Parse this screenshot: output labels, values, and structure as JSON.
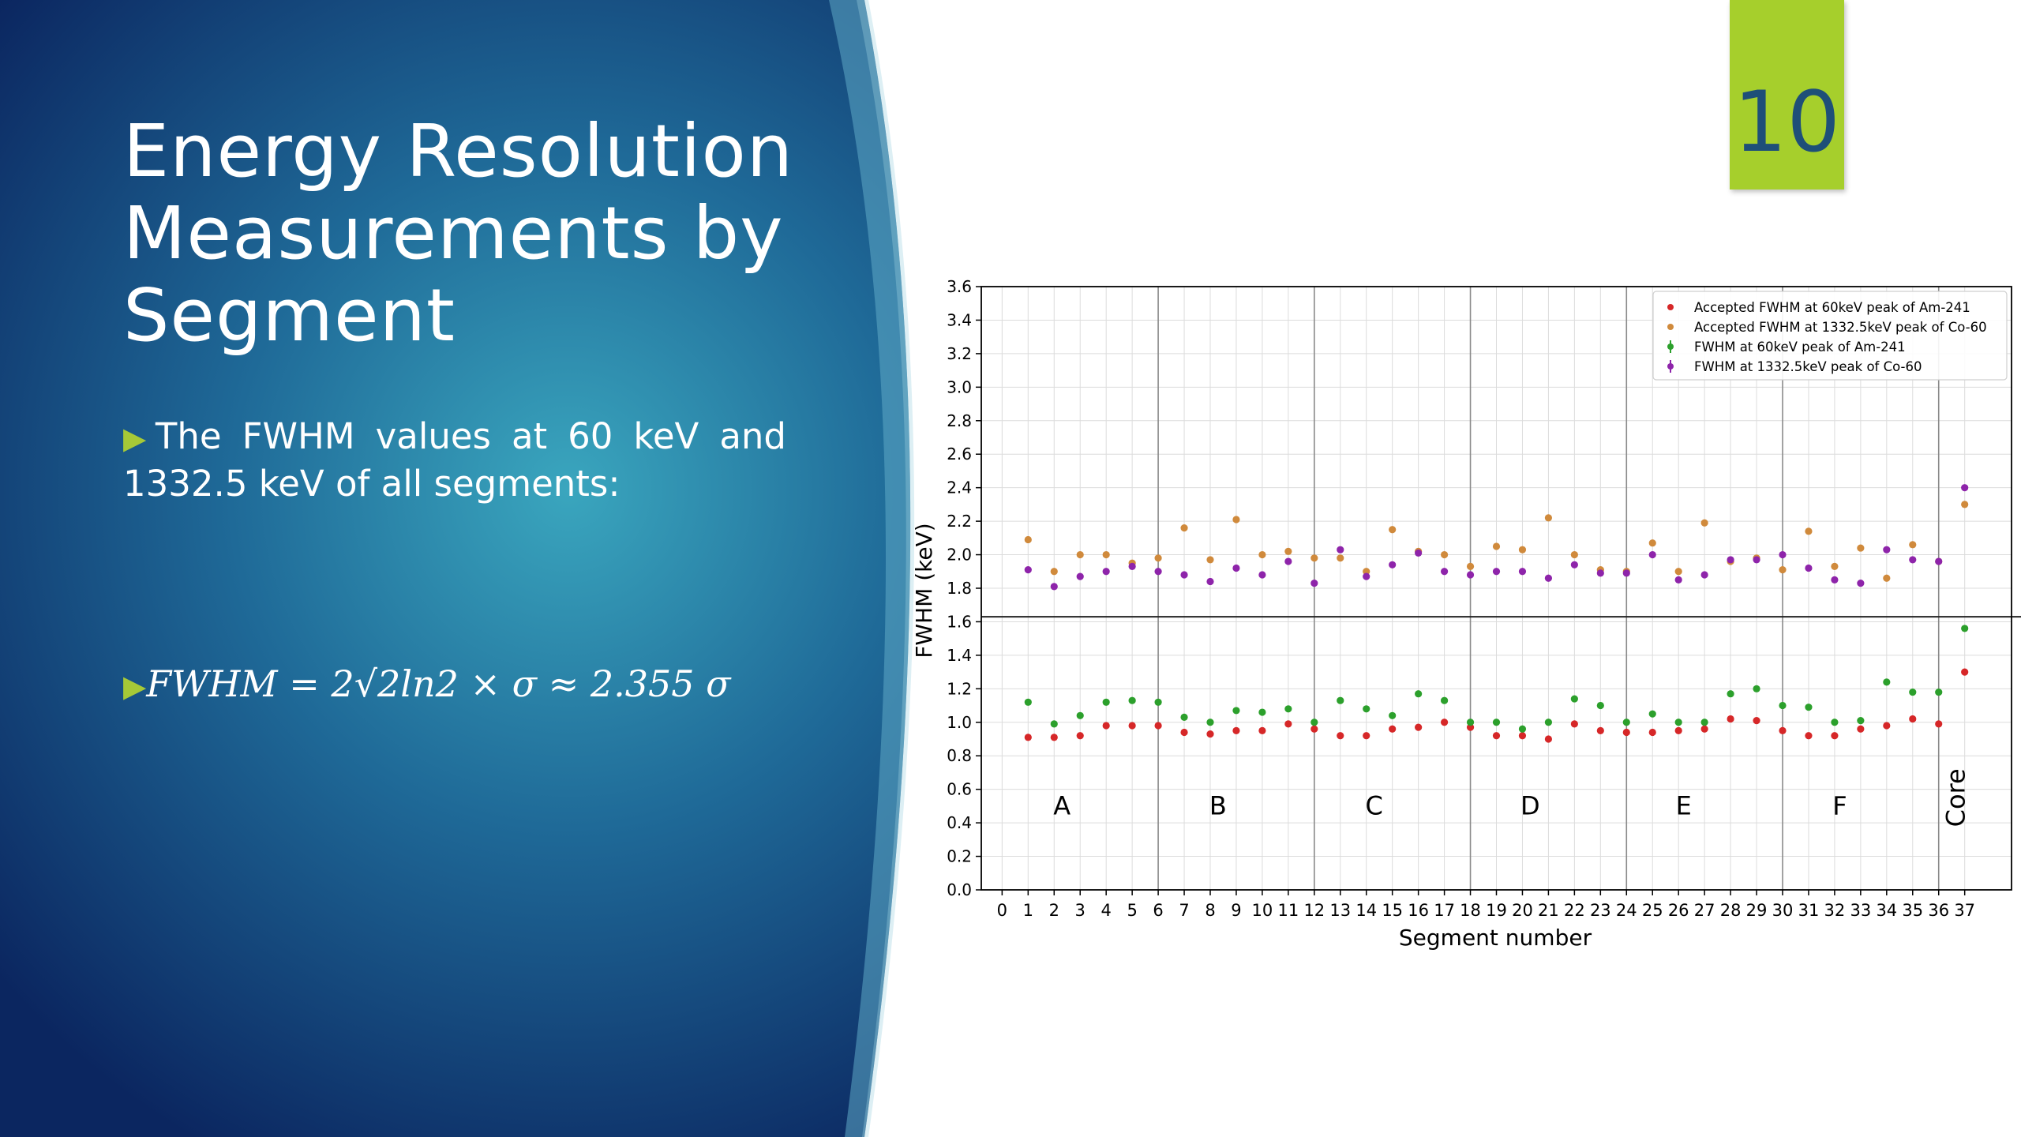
{
  "slide": {
    "title_lines": [
      "Energy Resolution",
      "Measurements by",
      "Segment"
    ],
    "bullet_1": "The FWHM values at 60 keV and 1332.5 keV of all segments:",
    "bullet_2": "FWHM = 2√2ln2 × σ ≈ 2.355 σ",
    "bullet_icon": "triangle-right-icon",
    "page_number": "10",
    "colors": {
      "title": "#ffffff",
      "accent_green": "#a6c937",
      "page_box": "#a6cf2c",
      "page_text": "#1e4f78",
      "bg_dark": "#0c2d66",
      "bg_teal": "#3596b0"
    }
  },
  "chart_data": {
    "type": "scatter",
    "title": "",
    "xlabel": "Segment number",
    "ylabel": "FWHM (keV)",
    "xlim": [
      -0.8,
      38.8
    ],
    "ylim": [
      0,
      3.6
    ],
    "x_ticks": [
      0,
      1,
      2,
      3,
      4,
      5,
      6,
      7,
      8,
      9,
      10,
      11,
      12,
      13,
      14,
      15,
      16,
      17,
      18,
      19,
      20,
      21,
      22,
      23,
      24,
      25,
      26,
      27,
      28,
      29,
      30,
      31,
      32,
      33,
      34,
      35,
      36,
      37
    ],
    "y_ticks": [
      0.0,
      0.2,
      0.4,
      0.6,
      0.8,
      1.0,
      1.2,
      1.4,
      1.6,
      1.8,
      2.0,
      2.2,
      2.4,
      2.6,
      2.8,
      3.0,
      3.2,
      3.4,
      3.6
    ],
    "grid": true,
    "legend_position": "top-right",
    "region_dividers_x": [
      6,
      12,
      18,
      24,
      30,
      36
    ],
    "horizontal_line_y": 1.63,
    "region_labels": [
      {
        "text": "A",
        "x": 2.3,
        "y": 0.45
      },
      {
        "text": "B",
        "x": 8.3,
        "y": 0.45
      },
      {
        "text": "C",
        "x": 14.3,
        "y": 0.45
      },
      {
        "text": "D",
        "x": 20.3,
        "y": 0.45
      },
      {
        "text": "E",
        "x": 26.2,
        "y": 0.45
      },
      {
        "text": "F",
        "x": 32.2,
        "y": 0.45
      },
      {
        "text": "Core",
        "x": 37.0,
        "y": 0.55,
        "rotated": true
      }
    ],
    "series": [
      {
        "name": "Accepted FWHM at 60keV peak of Am-241",
        "color": "#d62728",
        "x": [
          1,
          2,
          3,
          4,
          5,
          6,
          7,
          8,
          9,
          10,
          11,
          12,
          13,
          14,
          15,
          16,
          17,
          18,
          19,
          20,
          21,
          22,
          23,
          24,
          25,
          26,
          27,
          28,
          29,
          30,
          31,
          32,
          33,
          34,
          35,
          36,
          37
        ],
        "y": [
          0.91,
          0.91,
          0.92,
          0.98,
          0.98,
          0.98,
          0.94,
          0.93,
          0.95,
          0.95,
          0.99,
          0.96,
          0.92,
          0.92,
          0.96,
          0.97,
          1.0,
          0.97,
          0.92,
          0.92,
          0.9,
          0.99,
          0.95,
          0.94,
          0.94,
          0.95,
          0.96,
          1.02,
          1.01,
          0.95,
          0.92,
          0.92,
          0.96,
          0.98,
          1.02,
          0.99,
          1.3
        ]
      },
      {
        "name": "Accepted FWHM at 1332.5keV peak of Co-60",
        "color": "#d08a3c",
        "x": [
          1,
          2,
          3,
          4,
          5,
          6,
          7,
          8,
          9,
          10,
          11,
          12,
          13,
          14,
          15,
          16,
          17,
          18,
          19,
          20,
          21,
          22,
          23,
          24,
          25,
          26,
          27,
          28,
          29,
          30,
          31,
          32,
          33,
          34,
          35,
          36,
          37
        ],
        "y": [
          2.09,
          1.9,
          2.0,
          2.0,
          1.95,
          1.98,
          2.16,
          1.97,
          2.21,
          2.0,
          2.02,
          1.98,
          1.98,
          1.9,
          2.15,
          2.02,
          2.0,
          1.93,
          2.05,
          2.03,
          2.22,
          2.0,
          1.91,
          1.9,
          2.07,
          1.9,
          2.19,
          1.96,
          1.98,
          1.91,
          2.14,
          1.93,
          2.04,
          1.86,
          2.06,
          1.96,
          2.3
        ]
      },
      {
        "name": "FWHM at 60keV peak of Am-241",
        "color": "#2ca02c",
        "x": [
          1,
          2,
          3,
          4,
          5,
          6,
          7,
          8,
          9,
          10,
          11,
          12,
          13,
          14,
          15,
          16,
          17,
          18,
          19,
          20,
          21,
          22,
          23,
          24,
          25,
          26,
          27,
          28,
          29,
          30,
          31,
          32,
          33,
          34,
          35,
          36,
          37
        ],
        "y": [
          1.12,
          0.99,
          1.04,
          1.12,
          1.13,
          1.12,
          1.03,
          1.0,
          1.07,
          1.06,
          1.08,
          1.0,
          1.13,
          1.08,
          1.04,
          1.17,
          1.13,
          1.0,
          1.0,
          0.96,
          1.0,
          1.14,
          1.1,
          1.0,
          1.05,
          1.0,
          1.0,
          1.17,
          1.2,
          1.1,
          1.09,
          1.0,
          1.01,
          1.24,
          1.18,
          1.18,
          1.56
        ]
      },
      {
        "name": "FWHM at 1332.5keV peak of Co-60",
        "color": "#8e24aa",
        "x": [
          1,
          2,
          3,
          4,
          5,
          6,
          7,
          8,
          9,
          10,
          11,
          12,
          13,
          14,
          15,
          16,
          17,
          18,
          19,
          20,
          21,
          22,
          23,
          24,
          25,
          26,
          27,
          28,
          29,
          30,
          31,
          32,
          33,
          34,
          35,
          36,
          37
        ],
        "y": [
          1.91,
          1.81,
          1.87,
          1.9,
          1.93,
          1.9,
          1.88,
          1.84,
          1.92,
          1.88,
          1.96,
          1.83,
          2.03,
          1.87,
          1.94,
          2.01,
          1.9,
          1.88,
          1.9,
          1.9,
          1.86,
          1.94,
          1.89,
          1.89,
          2.0,
          1.85,
          1.88,
          1.97,
          1.97,
          2.0,
          1.92,
          1.85,
          1.83,
          2.03,
          1.97,
          1.96,
          2.4
        ]
      }
    ]
  }
}
